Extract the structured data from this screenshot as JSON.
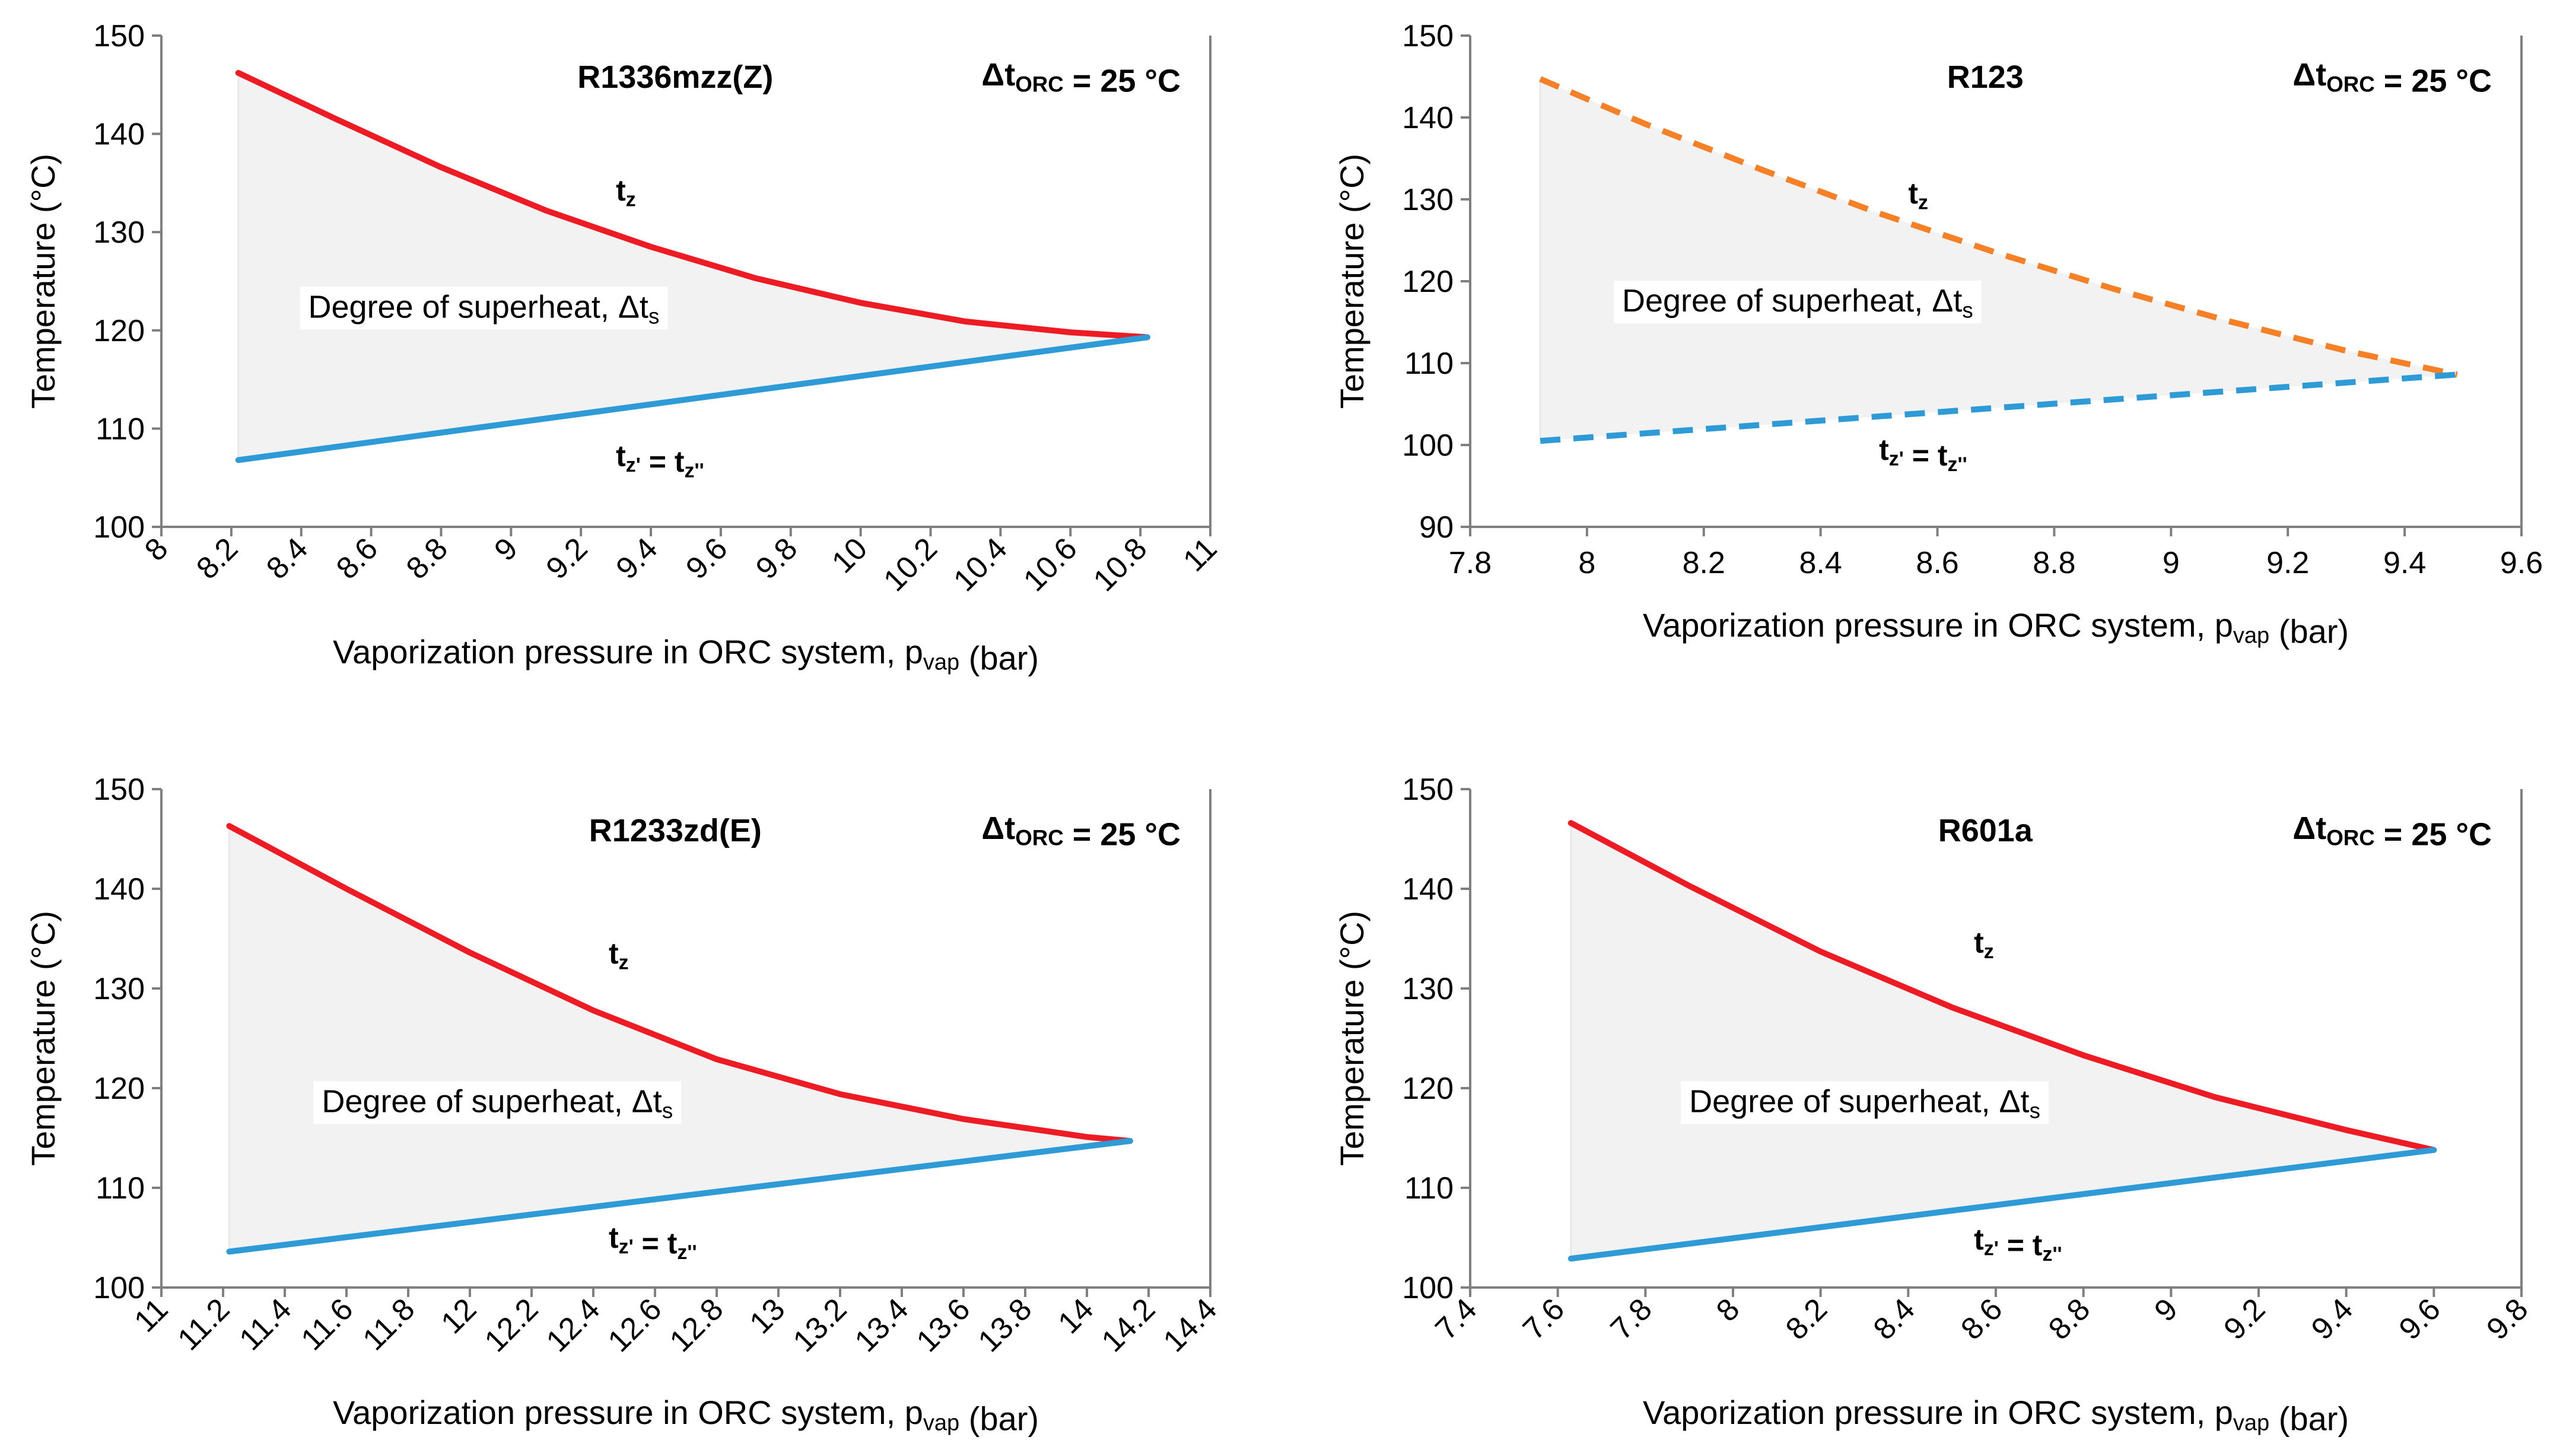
{
  "chart_data": [
    {
      "type": "line",
      "title": "R1336mzz(Z)",
      "delta_label": {
        "prefix": "Δt",
        "sub": "ORC",
        "suffix": " = 25 °C"
      },
      "xlabel": {
        "prefix": "Vaporization pressure in ORC system, p",
        "sub": "vap",
        "suffix": " (bar)"
      },
      "ylabel": "Temperature (°C)",
      "xlim": [
        8,
        11
      ],
      "ylim": [
        100,
        150
      ],
      "xticks": [
        8,
        8.2,
        8.4,
        8.6,
        8.8,
        9,
        9.2,
        9.4,
        9.6,
        9.8,
        10,
        10.2,
        10.4,
        10.6,
        10.8,
        11
      ],
      "xtick_labels": [
        "8",
        "8.2",
        "8.4",
        "8.6",
        "8.8",
        "9",
        "9.2",
        "9.4",
        "9.6",
        "9.8",
        "10",
        "10.2",
        "10.4",
        "10.6",
        "10.8",
        "11"
      ],
      "yticks": [
        100,
        110,
        120,
        130,
        140,
        150
      ],
      "ytick_labels": [
        "100",
        "110",
        "120",
        "130",
        "140",
        "150"
      ],
      "rotate_xticks": true,
      "dashed": false,
      "region_label": "Degree of superheat, Δt",
      "region_label_sub": "s",
      "series": [
        {
          "name": "t_z",
          "color": "#ed1c24",
          "x": [
            8.22,
            8.5,
            8.8,
            9.1,
            9.4,
            9.7,
            10.0,
            10.3,
            10.6,
            10.82
          ],
          "values": [
            146.2,
            141.5,
            136.6,
            132.2,
            128.5,
            125.3,
            122.8,
            120.9,
            119.8,
            119.3
          ]
        },
        {
          "name": "t_z' = t_z''",
          "color": "#2e9bd6",
          "x": [
            8.22,
            10.82
          ],
          "values": [
            106.8,
            119.3
          ]
        }
      ],
      "curve_labels": [
        {
          "text": "t",
          "sub": "z",
          "x": 9.3,
          "y": 133.2,
          "series": 0
        },
        {
          "text": "t",
          "sub": "z'",
          "text2": " = t",
          "sub2": "z''",
          "x": 9.3,
          "y": 106.2,
          "series": 1
        }
      ],
      "region_label_pos": {
        "x": 8.42,
        "y": 121.3
      }
    },
    {
      "type": "line",
      "title": "R123",
      "delta_label": {
        "prefix": "Δt",
        "sub": "ORC",
        "suffix": " = 25 °C"
      },
      "xlabel": {
        "prefix": "Vaporization pressure in ORC system, p",
        "sub": "vap",
        "suffix": " (bar)"
      },
      "ylabel": "Temperature (°C)",
      "xlim": [
        7.8,
        9.6
      ],
      "ylim": [
        90,
        150
      ],
      "xticks": [
        7.8,
        8,
        8.2,
        8.4,
        8.6,
        8.8,
        9,
        9.2,
        9.4,
        9.6
      ],
      "xtick_labels": [
        "7.8",
        "8",
        "8.2",
        "8.4",
        "8.6",
        "8.8",
        "9",
        "9.2",
        "9.4",
        "9.6"
      ],
      "yticks": [
        90,
        100,
        110,
        120,
        130,
        140,
        150
      ],
      "ytick_labels": [
        "90",
        "100",
        "110",
        "120",
        "130",
        "140",
        "150"
      ],
      "rotate_xticks": false,
      "dashed": true,
      "region_label": "Degree of superheat, Δt",
      "region_label_sub": "s",
      "series": [
        {
          "name": "t_z",
          "color": "#f58025",
          "x": [
            7.92,
            8.1,
            8.3,
            8.5,
            8.7,
            8.9,
            9.1,
            9.3,
            9.49
          ],
          "values": [
            144.7,
            139.2,
            133.6,
            128.3,
            123.5,
            119.1,
            115.1,
            111.5,
            108.6
          ]
        },
        {
          "name": "t_z' = t_z''",
          "color": "#2e9bd6",
          "x": [
            7.92,
            9.49
          ],
          "values": [
            100.5,
            108.6
          ]
        }
      ],
      "curve_labels": [
        {
          "text": "t",
          "sub": "z",
          "x": 8.55,
          "y": 129.5,
          "series": 0
        },
        {
          "text": "t",
          "sub": "z'",
          "text2": " = t",
          "sub2": "z''",
          "x": 8.5,
          "y": 98.2,
          "series": 1
        }
      ],
      "region_label_pos": {
        "x": 8.06,
        "y": 116.3
      }
    },
    {
      "type": "line",
      "title": "R1233zd(E)",
      "delta_label": {
        "prefix": "Δt",
        "sub": "ORC",
        "suffix": " = 25 °C"
      },
      "xlabel": {
        "prefix": "Vaporization pressure in ORC system, p",
        "sub": "vap",
        "suffix": " (bar)"
      },
      "ylabel": "Temperature (°C)",
      "xlim": [
        11,
        14.4
      ],
      "ylim": [
        100,
        150
      ],
      "xticks": [
        11,
        11.2,
        11.4,
        11.6,
        11.8,
        12,
        12.2,
        12.4,
        12.6,
        12.8,
        13,
        13.2,
        13.4,
        13.6,
        13.8,
        14,
        14.2,
        14.4
      ],
      "xtick_labels": [
        "11",
        "11.2",
        "11.4",
        "11.6",
        "11.8",
        "12",
        "12.2",
        "12.4",
        "12.6",
        "12.8",
        "13",
        "13.2",
        "13.4",
        "13.6",
        "13.8",
        "14",
        "14.2",
        "14.4"
      ],
      "yticks": [
        100,
        110,
        120,
        130,
        140,
        150
      ],
      "ytick_labels": [
        "100",
        "110",
        "120",
        "130",
        "140",
        "150"
      ],
      "rotate_xticks": true,
      "dashed": false,
      "region_label": "Degree of superheat, Δt",
      "region_label_sub": "s",
      "series": [
        {
          "name": "t_z",
          "color": "#ed1c24",
          "x": [
            11.22,
            11.6,
            12.0,
            12.4,
            12.8,
            13.2,
            13.6,
            14.0,
            14.14
          ],
          "values": [
            146.3,
            140.0,
            133.6,
            127.8,
            122.9,
            119.4,
            116.9,
            115.1,
            114.7
          ]
        },
        {
          "name": "t_z' = t_z''",
          "color": "#2e9bd6",
          "x": [
            11.22,
            14.14
          ],
          "values": [
            103.6,
            114.7
          ]
        }
      ],
      "curve_labels": [
        {
          "text": "t",
          "sub": "z",
          "x": 12.45,
          "y": 132.5,
          "series": 0
        },
        {
          "text": "t",
          "sub": "z'",
          "text2": " = t",
          "sub2": "z''",
          "x": 12.45,
          "y": 104.0,
          "series": 1
        }
      ],
      "region_label_pos": {
        "x": 11.52,
        "y": 117.6
      }
    },
    {
      "type": "line",
      "title": "R601a",
      "delta_label": {
        "prefix": "Δt",
        "sub": "ORC",
        "suffix": " = 25 °C"
      },
      "xlabel": {
        "prefix": "Vaporization pressure in ORC system, p",
        "sub": "vap",
        "suffix": " (bar)"
      },
      "ylabel": "Temperature (°C)",
      "xlim": [
        7.4,
        9.8
      ],
      "ylim": [
        100,
        150
      ],
      "xticks": [
        7.4,
        7.6,
        7.8,
        8,
        8.2,
        8.4,
        8.6,
        8.8,
        9,
        9.2,
        9.4,
        9.6,
        9.8
      ],
      "xtick_labels": [
        "7.4",
        "7.6",
        "7.8",
        "8",
        "8.2",
        "8.4",
        "8.6",
        "8.8",
        "9",
        "9.2",
        "9.4",
        "9.6",
        "9.8"
      ],
      "yticks": [
        100,
        110,
        120,
        130,
        140,
        150
      ],
      "ytick_labels": [
        "100",
        "110",
        "120",
        "130",
        "140",
        "150"
      ],
      "rotate_xticks": true,
      "dashed": false,
      "region_label": "Degree of superheat, Δt",
      "region_label_sub": "s",
      "series": [
        {
          "name": "t_z",
          "color": "#ed1c24",
          "x": [
            7.63,
            7.9,
            8.2,
            8.5,
            8.8,
            9.1,
            9.4,
            9.6
          ],
          "values": [
            146.6,
            140.3,
            133.7,
            128.1,
            123.3,
            119.1,
            115.8,
            113.8
          ]
        },
        {
          "name": "t_z' = t_z''",
          "color": "#2e9bd6",
          "x": [
            7.63,
            9.6
          ],
          "values": [
            102.9,
            113.8
          ]
        }
      ],
      "curve_labels": [
        {
          "text": "t",
          "sub": "z",
          "x": 8.55,
          "y": 133.6,
          "series": 0
        },
        {
          "text": "t",
          "sub": "z'",
          "text2": " = t",
          "sub2": "z''",
          "x": 8.55,
          "y": 103.8,
          "series": 1
        }
      ],
      "region_label_pos": {
        "x": 7.9,
        "y": 117.6
      }
    }
  ]
}
